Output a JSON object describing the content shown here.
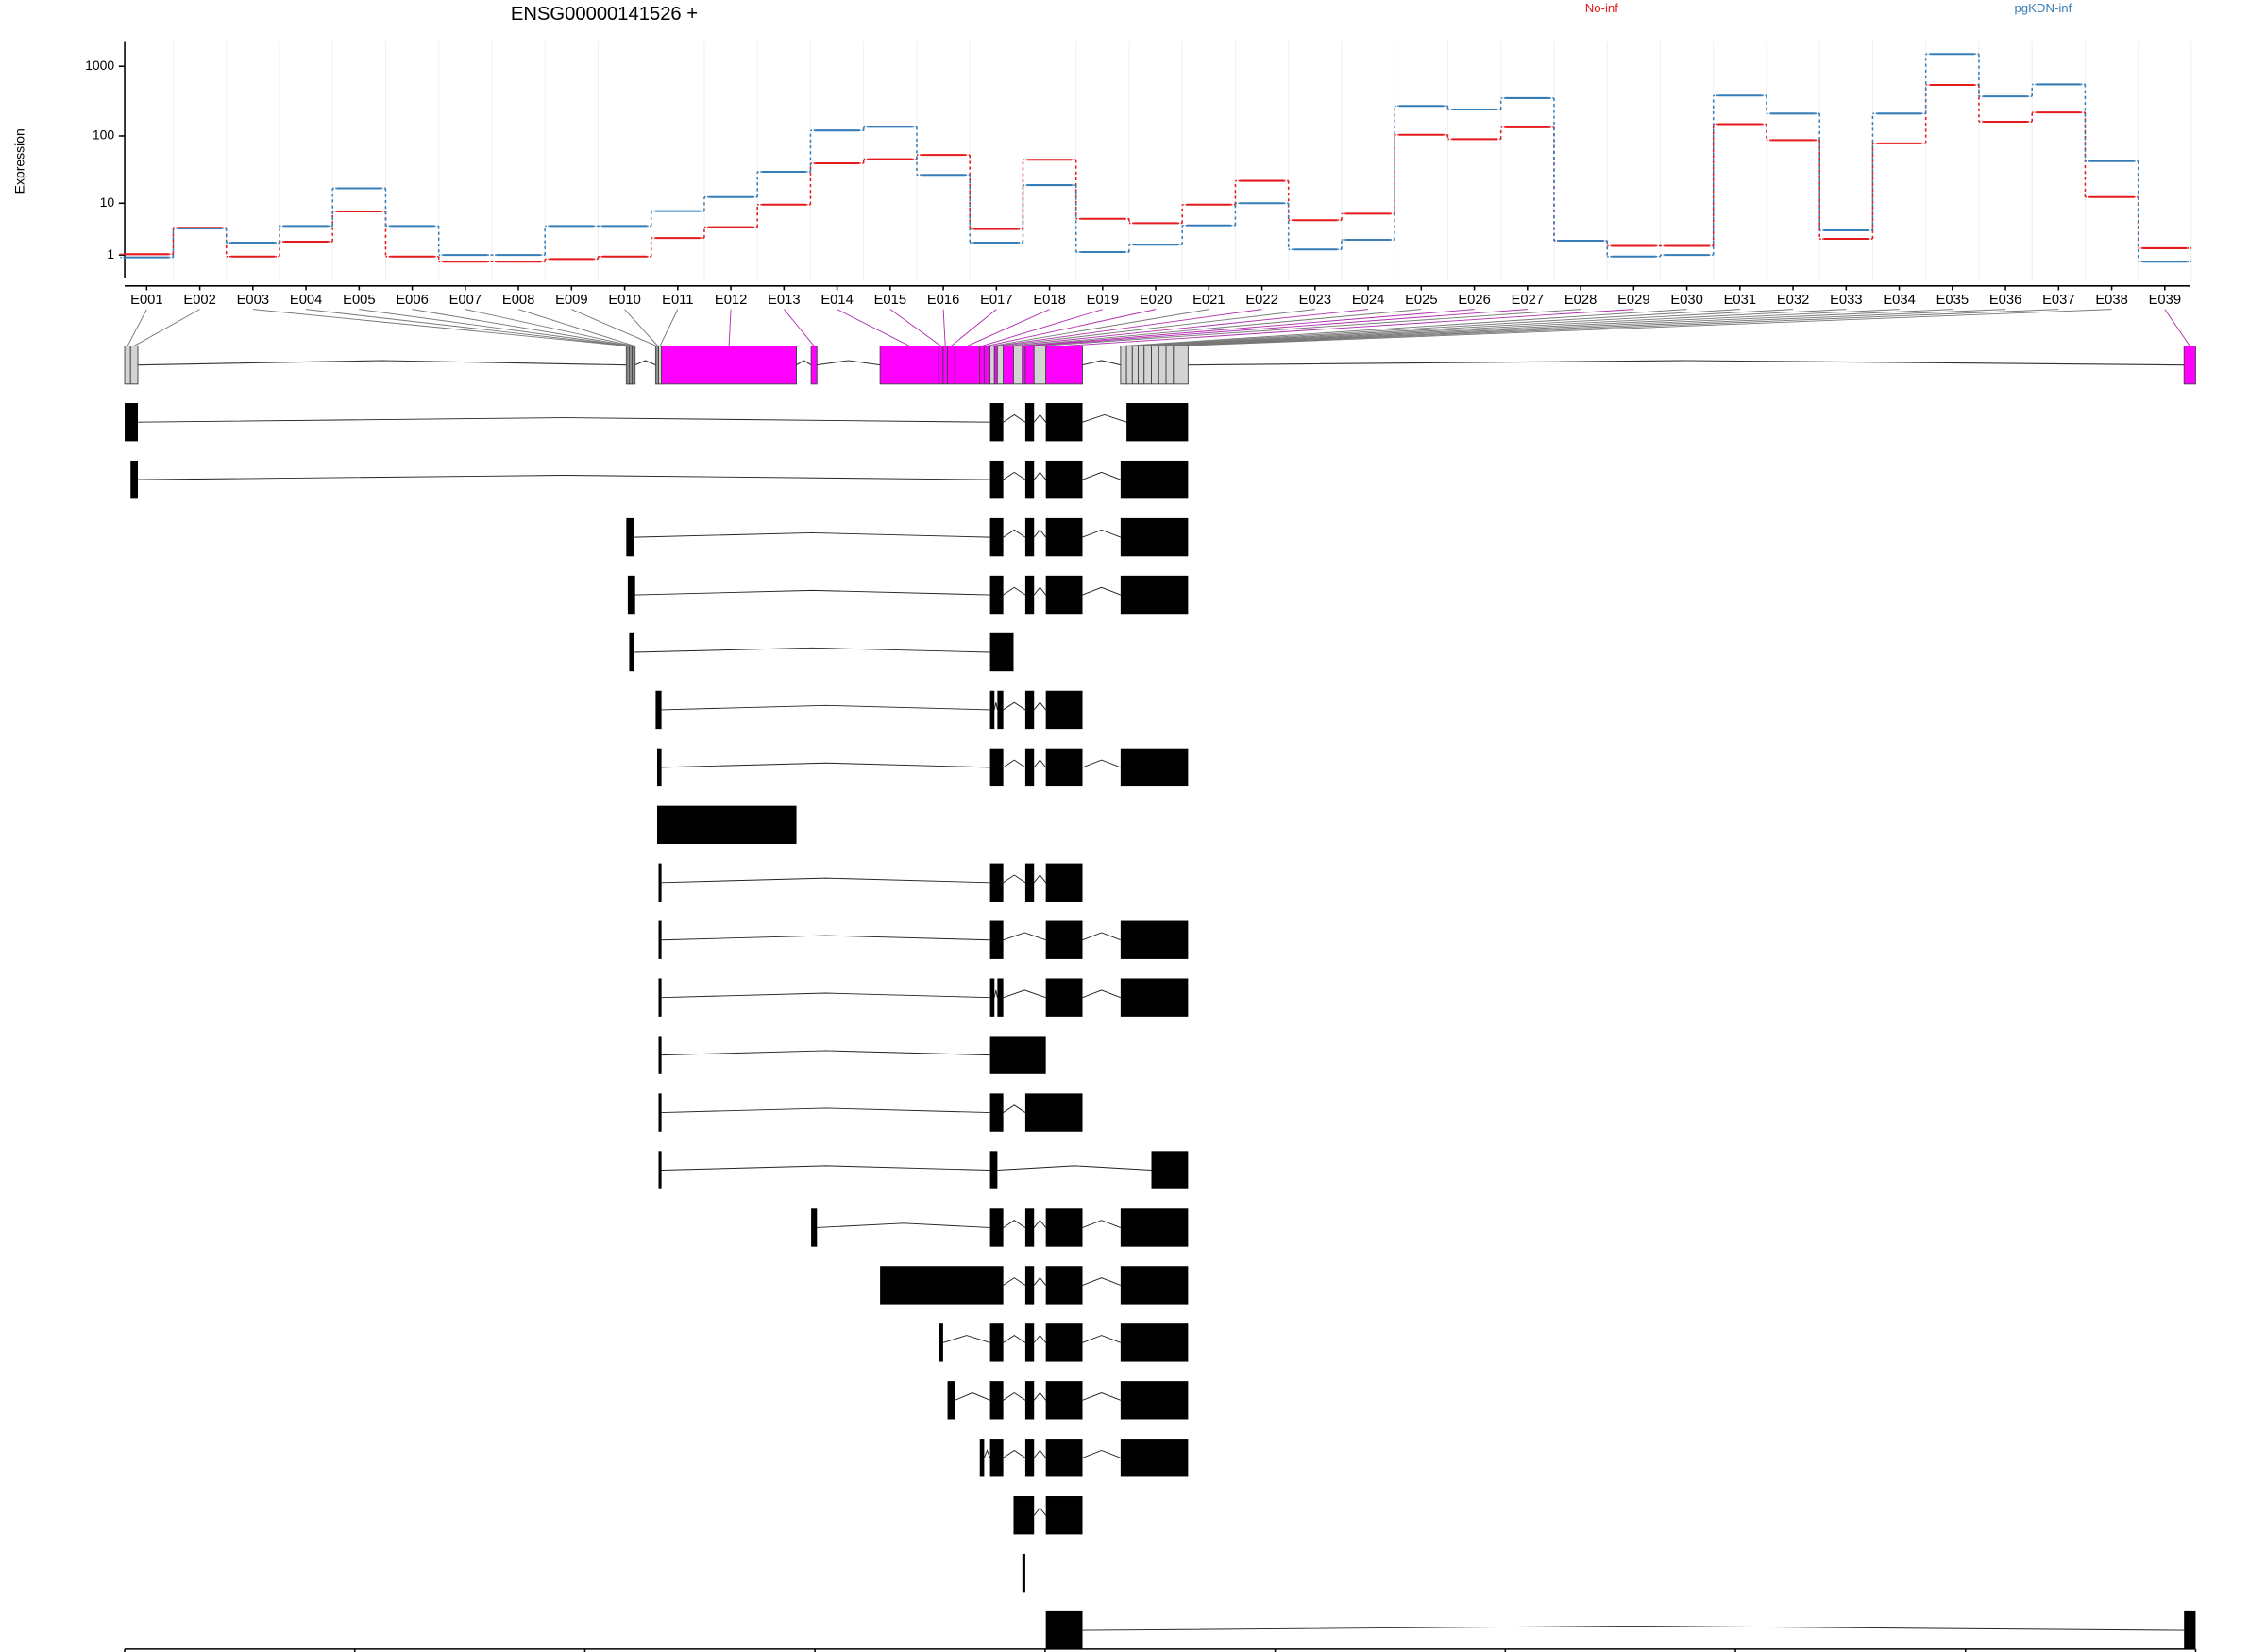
{
  "chart_data": {
    "type": "exon-usage",
    "title": "ENSG00000141526 +",
    "ylabel": "Expression",
    "y_transform": "log1p",
    "ylim": [
      0,
      2300
    ],
    "yticks": [
      1,
      10,
      100,
      1000
    ],
    "categories": [
      "E001",
      "E002",
      "E003",
      "E004",
      "E005",
      "E006",
      "E007",
      "E008",
      "E009",
      "E010",
      "E011",
      "E012",
      "E013",
      "E014",
      "E015",
      "E016",
      "E017",
      "E018",
      "E019",
      "E020",
      "E021",
      "E022",
      "E023",
      "E024",
      "E025",
      "E026",
      "E027",
      "E028",
      "E029",
      "E030",
      "E031",
      "E032",
      "E033",
      "E034",
      "E035",
      "E036",
      "E037",
      "E038",
      "E039"
    ],
    "series": [
      {
        "name": "No-inf",
        "color": "#e41a1c",
        "values": [
          1.05,
          3.9,
          0.9,
          2.1,
          7.4,
          0.9,
          0.6,
          0.6,
          0.75,
          0.9,
          2.5,
          4,
          9.5,
          40,
          46,
          53,
          3.7,
          45,
          5.6,
          4.7,
          9.5,
          22,
          5.3,
          6.8,
          104,
          90,
          133,
          2.2,
          1.7,
          1.7,
          148,
          87,
          2.4,
          78,
          540,
          160,
          218,
          12.5,
          1.5
        ]
      },
      {
        "name": "pgKDN-inf",
        "color": "#377eb8",
        "values": [
          0.85,
          3.8,
          2,
          4.2,
          17,
          4.2,
          1.0,
          1.0,
          4.2,
          4.2,
          7.5,
          12.5,
          30,
          120,
          135,
          27,
          2,
          19,
          1.2,
          1.8,
          4.3,
          10,
          1.4,
          2.3,
          270,
          240,
          350,
          2.2,
          0.9,
          1.0,
          380,
          210,
          3.5,
          210,
          1500,
          370,
          550,
          43,
          0.6
        ]
      }
    ],
    "xlim": [
      82217934,
      82261129
    ],
    "xticks": [
      82217934,
      82222733,
      82227533,
      82232332,
      82237132,
      82241931,
      82246731,
      82251530,
      82256330,
      82261129
    ],
    "exon_bins": [
      [
        82217934,
        82218056
      ],
      [
        82218056,
        82218209
      ],
      [
        82228397,
        82228428
      ],
      [
        82228428,
        82228458
      ],
      [
        82228458,
        82228489
      ],
      [
        82228489,
        82228520
      ],
      [
        82228520,
        82228550
      ],
      [
        82228550,
        82228581
      ],
      [
        82229009,
        82229040
      ],
      [
        82229040,
        82229070
      ],
      [
        82229070,
        82229131
      ],
      [
        82229131,
        82231946
      ],
      [
        82232252,
        82232374
      ],
      [
        82233690,
        82234914
      ],
      [
        82234914,
        82235005
      ],
      [
        82235005,
        82235097
      ],
      [
        82235097,
        82235250
      ],
      [
        82235250,
        82235770
      ],
      [
        82235770,
        82235862
      ],
      [
        82235862,
        82235984
      ],
      [
        82235984,
        82236076
      ],
      [
        82236076,
        82236137
      ],
      [
        82236137,
        82236260
      ],
      [
        82236260,
        82236474
      ],
      [
        82236474,
        82236658
      ],
      [
        82236658,
        82236719
      ],
      [
        82236719,
        82236902
      ],
      [
        82236902,
        82237147
      ],
      [
        82237147,
        82237912
      ],
      [
        82238707,
        82238830
      ],
      [
        82238830,
        82238952
      ],
      [
        82238952,
        82239074
      ],
      [
        82239074,
        82239197
      ],
      [
        82239197,
        82239350
      ],
      [
        82239350,
        82239503
      ],
      [
        82239503,
        82239656
      ],
      [
        82239656,
        82239809
      ],
      [
        82239809,
        82240115
      ],
      [
        82260888,
        82261129
      ]
    ],
    "significant": [
      false,
      false,
      false,
      false,
      false,
      false,
      false,
      false,
      false,
      false,
      false,
      true,
      true,
      true,
      true,
      true,
      true,
      true,
      true,
      true,
      false,
      true,
      false,
      true,
      false,
      true,
      true,
      false,
      true,
      false,
      false,
      false,
      false,
      false,
      false,
      false,
      false,
      false,
      true
    ],
    "bin_colors": {
      "significant": "#ff00ff",
      "other": "#d3d3d3"
    },
    "transcripts": [
      [
        [
          82217934,
          82218209
        ],
        [
          82235984,
          82236260
        ],
        [
          82236719,
          82236902
        ],
        [
          82237147,
          82237912
        ],
        [
          82238830,
          82240115
        ]
      ],
      [
        [
          82218056,
          82218209
        ],
        [
          82235984,
          82236260
        ],
        [
          82236719,
          82236902
        ],
        [
          82237147,
          82237912
        ],
        [
          82238707,
          82240115
        ]
      ],
      [
        [
          82228397,
          82228550
        ],
        [
          82235984,
          82236260
        ],
        [
          82236719,
          82236902
        ],
        [
          82237147,
          82237912
        ],
        [
          82238707,
          82240115
        ]
      ],
      [
        [
          82228428,
          82228581
        ],
        [
          82235984,
          82236260
        ],
        [
          82236719,
          82236902
        ],
        [
          82237147,
          82237912
        ],
        [
          82238707,
          82240115
        ]
      ],
      [
        [
          82228458,
          82228550
        ],
        [
          82235984,
          82236474
        ]
      ],
      [
        [
          82229009,
          82229131
        ],
        [
          82235984,
          82236076
        ],
        [
          82236137,
          82236260
        ],
        [
          82236719,
          82236902
        ],
        [
          82237147,
          82237912
        ]
      ],
      [
        [
          82229040,
          82229131
        ],
        [
          82235984,
          82236260
        ],
        [
          82236719,
          82236902
        ],
        [
          82237147,
          82237912
        ],
        [
          82238707,
          82240115
        ]
      ],
      [
        [
          82229040,
          82231946
        ]
      ],
      [
        [
          82229070,
          82229131
        ],
        [
          82235984,
          82236260
        ],
        [
          82236719,
          82236902
        ],
        [
          82237147,
          82237912
        ]
      ],
      [
        [
          82229070,
          82229131
        ],
        [
          82235984,
          82236260
        ],
        [
          82237147,
          82237912
        ],
        [
          82238707,
          82240115
        ]
      ],
      [
        [
          82229070,
          82229131
        ],
        [
          82235984,
          82236076
        ],
        [
          82236137,
          82236260
        ],
        [
          82237147,
          82237912
        ],
        [
          82238707,
          82240115
        ]
      ],
      [
        [
          82229070,
          82229131
        ],
        [
          82235984,
          82237147
        ]
      ],
      [
        [
          82229070,
          82229131
        ],
        [
          82235984,
          82236260
        ],
        [
          82236719,
          82237912
        ]
      ],
      [
        [
          82229070,
          82229131
        ],
        [
          82235984,
          82236137
        ],
        [
          82239350,
          82240115
        ]
      ],
      [
        [
          82232252,
          82232374
        ],
        [
          82235984,
          82236260
        ],
        [
          82236719,
          82236902
        ],
        [
          82237147,
          82237912
        ],
        [
          82238707,
          82240115
        ]
      ],
      [
        [
          82233690,
          82236260
        ],
        [
          82236719,
          82236902
        ],
        [
          82237147,
          82237912
        ],
        [
          82238707,
          82240115
        ]
      ],
      [
        [
          82234914,
          82235005
        ],
        [
          82235984,
          82236260
        ],
        [
          82236719,
          82236902
        ],
        [
          82237147,
          82237912
        ],
        [
          82238707,
          82240115
        ]
      ],
      [
        [
          82235097,
          82235250
        ],
        [
          82235984,
          82236260
        ],
        [
          82236719,
          82236902
        ],
        [
          82237147,
          82237912
        ],
        [
          82238707,
          82240115
        ]
      ],
      [
        [
          82235770,
          82235862
        ],
        [
          82235984,
          82236260
        ],
        [
          82236719,
          82236902
        ],
        [
          82237147,
          82237912
        ],
        [
          82238707,
          82240115
        ]
      ],
      [
        [
          82236474,
          82236902
        ],
        [
          82237147,
          82237912
        ]
      ],
      [
        [
          82236658,
          82236719
        ]
      ],
      [
        [
          82237147,
          82237912
        ],
        [
          82260888,
          82261129
        ]
      ]
    ]
  }
}
